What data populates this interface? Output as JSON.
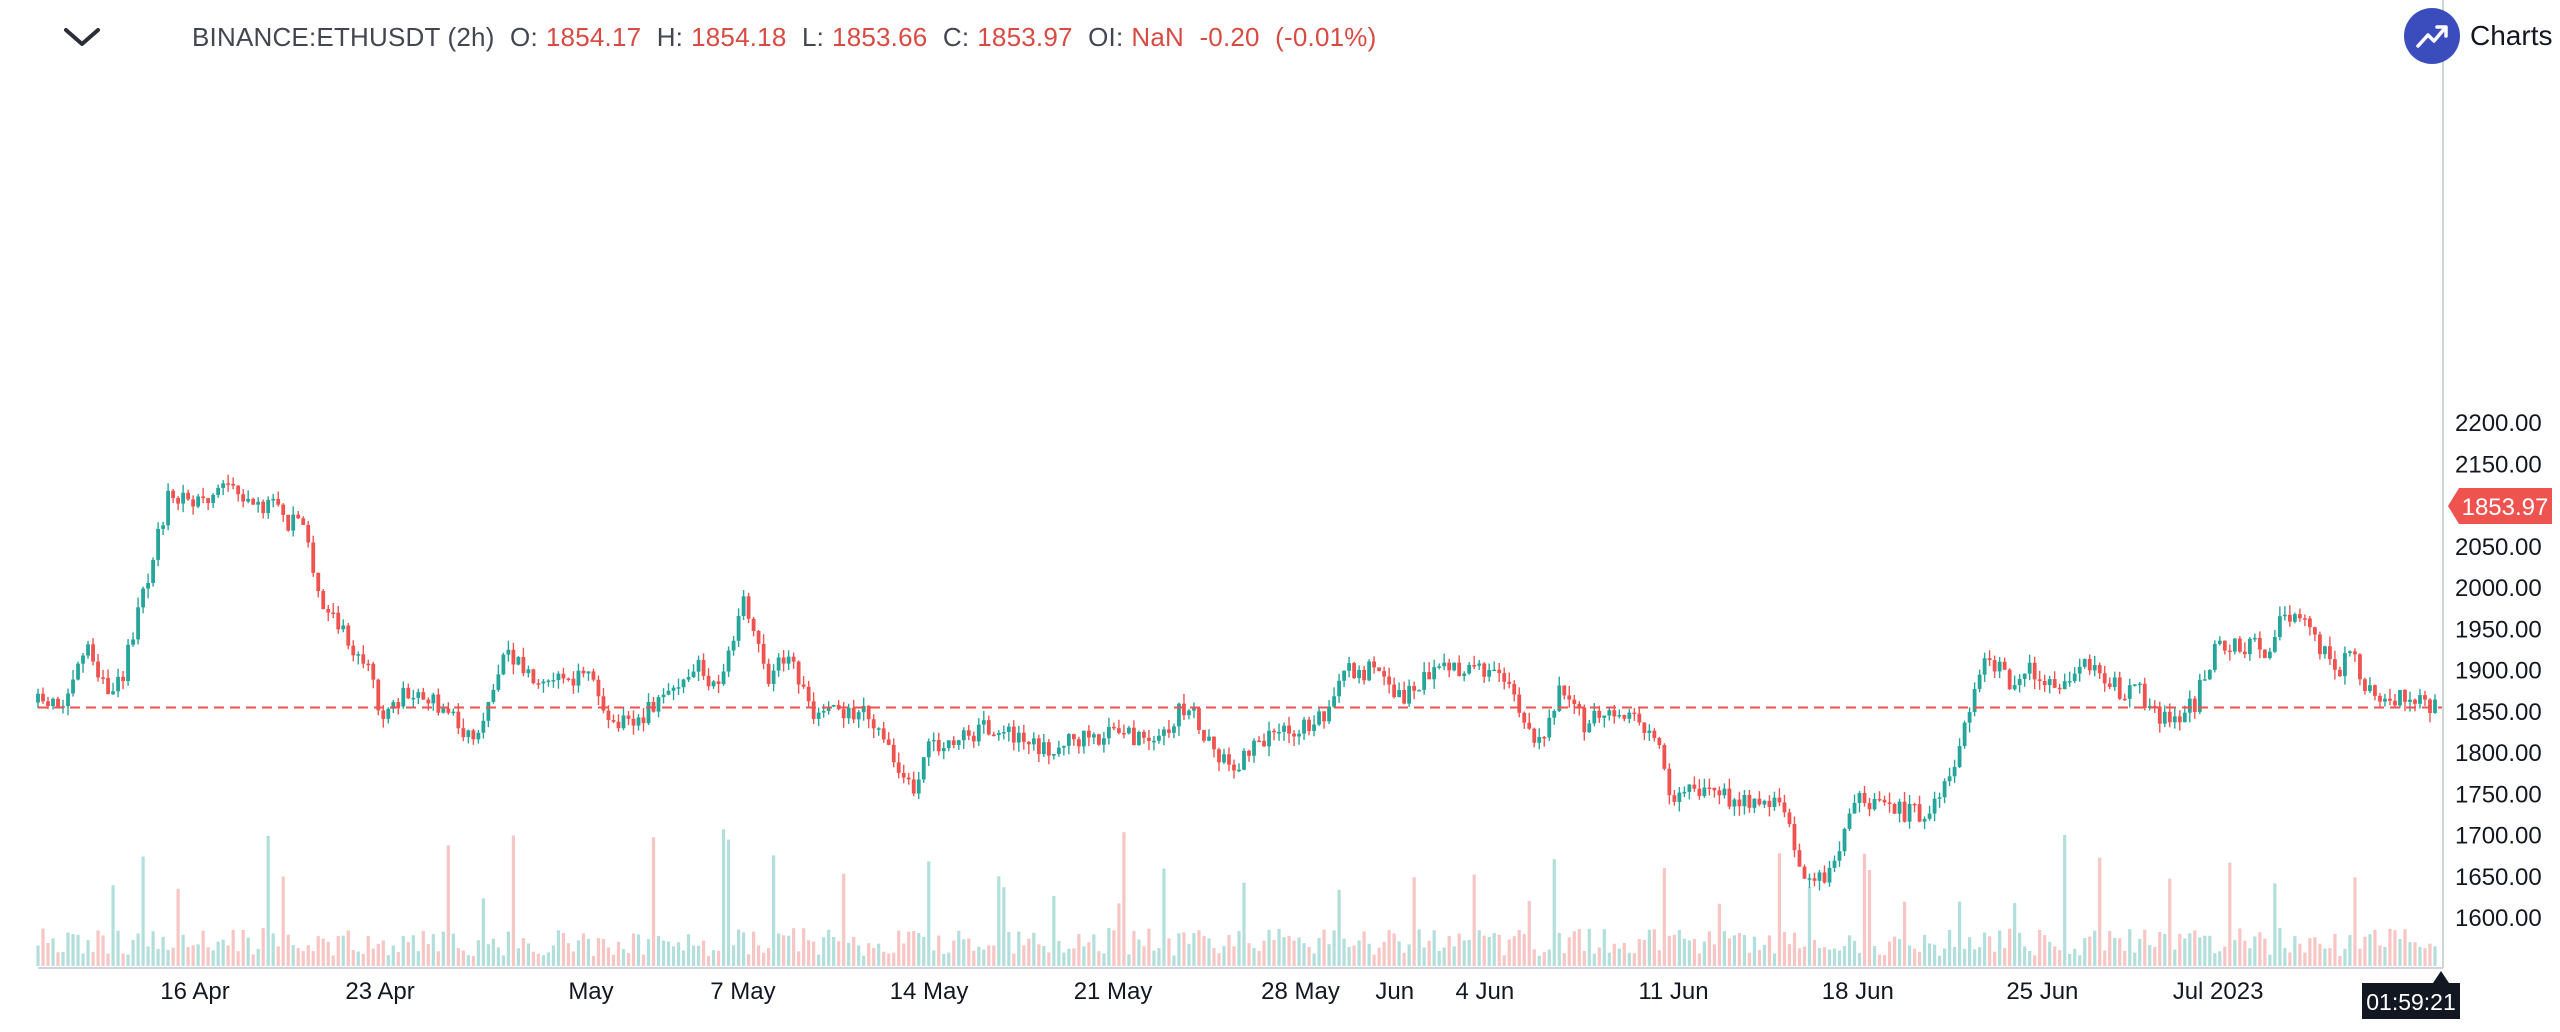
{
  "legend": {
    "symbol": "BINANCE:ETHUSDT (2h)",
    "o_label": "O:",
    "o_value": "1854.17",
    "h_label": "H:",
    "h_value": "1854.18",
    "l_label": "L:",
    "l_value": "1853.66",
    "c_label": "C:",
    "c_value": "1853.97",
    "oi_label": "OI:",
    "oi_value": "NaN",
    "change": "-0.20",
    "change_pct": "(-0.01%)"
  },
  "badge": {
    "text": "Charts p",
    "icon": "trend-up-icon"
  },
  "colors": {
    "up": "#26a69a",
    "down": "#ef5350",
    "volume_up": "#b2dfdb",
    "volume_down": "#f7c6c4",
    "price_line": "#ef5350",
    "axis_text": "#131722"
  },
  "chart_data": {
    "type": "candlestick",
    "symbol": "BINANCE:ETHUSDT",
    "interval": "2h",
    "last_price": 1853.97,
    "last_price_label": "1853.97",
    "countdown": "01:59:21",
    "ylim": [
      1580,
      2200
    ],
    "y_ticks": [
      1600,
      1650,
      1700,
      1750,
      1800,
      1850,
      1900,
      1950,
      2000,
      2050,
      2100,
      2150,
      2200
    ],
    "y_tick_labels": [
      "1600.00",
      "1650.00",
      "1700.00",
      "1750.00",
      "1800.00",
      "1850.00",
      "1900.00",
      "1950.00",
      "2000.00",
      "2050.00",
      "2100.00",
      "2150.00",
      "2200.00"
    ],
    "x_ticks": [
      {
        "label": "16 Apr",
        "t": 0.0655
      },
      {
        "label": "23 Apr",
        "t": 0.1427
      },
      {
        "label": "May",
        "t": 0.2307
      },
      {
        "label": "7 May",
        "t": 0.2941
      },
      {
        "label": "14 May",
        "t": 0.3717
      },
      {
        "label": "21 May",
        "t": 0.4485
      },
      {
        "label": "28 May",
        "t": 0.5267
      },
      {
        "label": "Jun",
        "t": 0.566
      },
      {
        "label": "4 Jun",
        "t": 0.6036
      },
      {
        "label": "11 Jun",
        "t": 0.6823
      },
      {
        "label": "18 Jun",
        "t": 0.7592
      },
      {
        "label": "25 Jun",
        "t": 0.8362
      },
      {
        "label": "Jul 2023",
        "t": 0.9095
      }
    ],
    "price_path": [
      [
        0.0,
        1860
      ],
      [
        0.012,
        1855
      ],
      [
        0.02,
        1930
      ],
      [
        0.03,
        1870
      ],
      [
        0.035,
        1890
      ],
      [
        0.04,
        1945
      ],
      [
        0.045,
        2000
      ],
      [
        0.05,
        2060
      ],
      [
        0.055,
        2115
      ],
      [
        0.06,
        2105
      ],
      [
        0.07,
        2095
      ],
      [
        0.08,
        2125
      ],
      [
        0.09,
        2090
      ],
      [
        0.1,
        2110
      ],
      [
        0.105,
        2075
      ],
      [
        0.11,
        2080
      ],
      [
        0.118,
        1985
      ],
      [
        0.125,
        1960
      ],
      [
        0.13,
        1930
      ],
      [
        0.135,
        1915
      ],
      [
        0.14,
        1880
      ],
      [
        0.145,
        1835
      ],
      [
        0.152,
        1870
      ],
      [
        0.16,
        1865
      ],
      [
        0.168,
        1855
      ],
      [
        0.175,
        1835
      ],
      [
        0.18,
        1820
      ],
      [
        0.185,
        1830
      ],
      [
        0.19,
        1880
      ],
      [
        0.195,
        1940
      ],
      [
        0.2,
        1905
      ],
      [
        0.205,
        1895
      ],
      [
        0.215,
        1895
      ],
      [
        0.225,
        1890
      ],
      [
        0.23,
        1890
      ],
      [
        0.235,
        1865
      ],
      [
        0.24,
        1835
      ],
      [
        0.248,
        1830
      ],
      [
        0.255,
        1850
      ],
      [
        0.265,
        1880
      ],
      [
        0.275,
        1905
      ],
      [
        0.28,
        1880
      ],
      [
        0.285,
        1895
      ],
      [
        0.29,
        1925
      ],
      [
        0.294,
        1995
      ],
      [
        0.3,
        1940
      ],
      [
        0.305,
        1880
      ],
      [
        0.31,
        1910
      ],
      [
        0.315,
        1900
      ],
      [
        0.32,
        1865
      ],
      [
        0.325,
        1840
      ],
      [
        0.335,
        1850
      ],
      [
        0.34,
        1840
      ],
      [
        0.345,
        1860
      ],
      [
        0.35,
        1820
      ],
      [
        0.355,
        1800
      ],
      [
        0.36,
        1775
      ],
      [
        0.365,
        1755
      ],
      [
        0.37,
        1800
      ],
      [
        0.38,
        1810
      ],
      [
        0.39,
        1820
      ],
      [
        0.395,
        1830
      ],
      [
        0.4,
        1830
      ],
      [
        0.41,
        1810
      ],
      [
        0.42,
        1800
      ],
      [
        0.43,
        1810
      ],
      [
        0.44,
        1820
      ],
      [
        0.45,
        1820
      ],
      [
        0.46,
        1815
      ],
      [
        0.47,
        1825
      ],
      [
        0.475,
        1845
      ],
      [
        0.48,
        1855
      ],
      [
        0.485,
        1830
      ],
      [
        0.49,
        1810
      ],
      [
        0.495,
        1790
      ],
      [
        0.5,
        1785
      ],
      [
        0.51,
        1810
      ],
      [
        0.52,
        1830
      ],
      [
        0.53,
        1830
      ],
      [
        0.54,
        1850
      ],
      [
        0.545,
        1905
      ],
      [
        0.55,
        1895
      ],
      [
        0.56,
        1905
      ],
      [
        0.565,
        1875
      ],
      [
        0.57,
        1870
      ],
      [
        0.58,
        1890
      ],
      [
        0.59,
        1900
      ],
      [
        0.6,
        1905
      ],
      [
        0.61,
        1895
      ],
      [
        0.615,
        1880
      ],
      [
        0.62,
        1840
      ],
      [
        0.625,
        1810
      ],
      [
        0.63,
        1830
      ],
      [
        0.635,
        1880
      ],
      [
        0.64,
        1860
      ],
      [
        0.645,
        1835
      ],
      [
        0.65,
        1850
      ],
      [
        0.655,
        1845
      ],
      [
        0.66,
        1850
      ],
      [
        0.665,
        1835
      ],
      [
        0.67,
        1835
      ],
      [
        0.675,
        1820
      ],
      [
        0.68,
        1750
      ],
      [
        0.69,
        1750
      ],
      [
        0.7,
        1745
      ],
      [
        0.71,
        1745
      ],
      [
        0.72,
        1740
      ],
      [
        0.73,
        1735
      ],
      [
        0.735,
        1655
      ],
      [
        0.74,
        1640
      ],
      [
        0.745,
        1650
      ],
      [
        0.75,
        1665
      ],
      [
        0.755,
        1720
      ],
      [
        0.76,
        1740
      ],
      [
        0.765,
        1735
      ],
      [
        0.77,
        1740
      ],
      [
        0.78,
        1725
      ],
      [
        0.79,
        1730
      ],
      [
        0.8,
        1790
      ],
      [
        0.805,
        1850
      ],
      [
        0.81,
        1905
      ],
      [
        0.815,
        1910
      ],
      [
        0.825,
        1880
      ],
      [
        0.83,
        1905
      ],
      [
        0.84,
        1875
      ],
      [
        0.85,
        1905
      ],
      [
        0.86,
        1900
      ],
      [
        0.87,
        1870
      ],
      [
        0.875,
        1880
      ],
      [
        0.88,
        1860
      ],
      [
        0.89,
        1830
      ],
      [
        0.895,
        1850
      ],
      [
        0.9,
        1860
      ],
      [
        0.905,
        1905
      ],
      [
        0.91,
        1935
      ],
      [
        0.915,
        1925
      ],
      [
        0.925,
        1930
      ],
      [
        0.93,
        1920
      ],
      [
        0.935,
        1960
      ],
      [
        0.94,
        1960
      ],
      [
        0.945,
        1955
      ],
      [
        0.95,
        1930
      ],
      [
        0.955,
        1915
      ],
      [
        0.96,
        1900
      ],
      [
        0.965,
        1920
      ],
      [
        0.97,
        1880
      ],
      [
        0.975,
        1865
      ],
      [
        0.98,
        1865
      ],
      [
        0.99,
        1870
      ],
      [
        1.0,
        1855
      ]
    ],
    "volume_spike_positions": [
      0.032,
      0.043,
      0.058,
      0.096,
      0.103,
      0.172,
      0.186,
      0.199,
      0.257,
      0.287,
      0.307,
      0.337,
      0.372,
      0.402,
      0.424,
      0.452,
      0.47,
      0.504,
      0.542,
      0.574,
      0.6,
      0.622,
      0.633,
      0.679,
      0.702,
      0.727,
      0.739,
      0.763,
      0.778,
      0.802,
      0.825,
      0.846,
      0.86,
      0.89,
      0.915,
      0.933,
      0.966
    ]
  }
}
